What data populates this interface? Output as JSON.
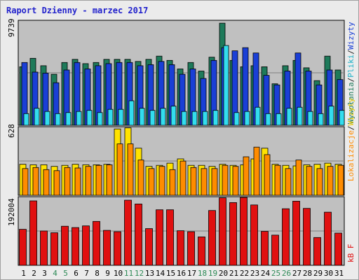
{
  "title": "Raport Dzienny -  marzec 2017",
  "colors": {
    "wywolania": "#1e7a5a",
    "wizyty": "#1a3fd6",
    "pliki": "#33ddee",
    "lokalizacje": "#ff8c00",
    "wizyty_yellow": "#ffe200",
    "kbf": "#e01010",
    "background": "#c0c0c0",
    "weekend_day": "#2e8b57"
  },
  "panels": {
    "top": {
      "max_label": "9739",
      "legend": [
        {
          "text": "Wywołania",
          "color": "#1e7a5a"
        },
        {
          "text": "/",
          "color": "#222222"
        },
        {
          "text": "Pliki",
          "color": "#1ab0c8"
        },
        {
          "text": "/",
          "color": "#222222"
        },
        {
          "text": "Wizyty",
          "color": "#1a3fd6"
        }
      ]
    },
    "middle": {
      "max_label": "628",
      "legend": [
        {
          "text": "Lokalizacje",
          "color": "#ff8c00"
        },
        {
          "text": "/",
          "color": "#222222"
        },
        {
          "text": "Wizyty",
          "color": "#e6c800"
        }
      ]
    },
    "bottom": {
      "max_label": "192004",
      "legend": [
        {
          "text": "kB F",
          "color": "#e01010"
        }
      ]
    }
  },
  "chart_data": {
    "type": "bar",
    "title": "Raport Dzienny -  marzec 2017",
    "categories": [
      "1",
      "2",
      "3",
      "4",
      "5",
      "6",
      "7",
      "8",
      "9",
      "10",
      "11",
      "12",
      "13",
      "14",
      "15",
      "16",
      "17",
      "18",
      "19",
      "20",
      "21",
      "22",
      "23",
      "24",
      "25",
      "26",
      "27",
      "28",
      "29",
      "30",
      "31"
    ],
    "weekend_days": [
      "4",
      "5",
      "11",
      "12",
      "18",
      "19",
      "25",
      "26"
    ],
    "panel_top": {
      "ymax": 9739,
      "series": [
        {
          "name": "Wywołania",
          "values": [
            5500,
            6300,
            5600,
            4800,
            5900,
            6200,
            5800,
            5900,
            6200,
            6200,
            6200,
            6000,
            6200,
            6500,
            6100,
            5300,
            5900,
            5100,
            6400,
            9600,
            6100,
            5500,
            5600,
            5500,
            3900,
            5600,
            6100,
            5400,
            4200,
            6500,
            5200
          ]
        },
        {
          "name": "Wizyty",
          "values": [
            5900,
            5000,
            4900,
            4000,
            5200,
            5900,
            5300,
            5600,
            5800,
            5900,
            5900,
            5600,
            5700,
            6000,
            5700,
            4800,
            5300,
            4400,
            6100,
            7300,
            7000,
            7300,
            6800,
            4700,
            3800,
            5100,
            6800,
            5100,
            3800,
            5200,
            4300
          ]
        },
        {
          "name": "Pliki",
          "values": [
            1100,
            1600,
            1300,
            1100,
            1200,
            1300,
            1400,
            1200,
            1500,
            1500,
            2300,
            1600,
            1400,
            1600,
            1800,
            1300,
            1300,
            1300,
            1400,
            7500,
            1200,
            1300,
            1700,
            1100,
            1100,
            1600,
            1700,
            1300,
            1100,
            1800,
            1400
          ]
        }
      ]
    },
    "panel_middle": {
      "ymax": 628,
      "series": [
        {
          "name": "Wizyty",
          "values": [
            290,
            285,
            285,
            270,
            280,
            290,
            285,
            285,
            290,
            620,
            630,
            440,
            270,
            280,
            300,
            340,
            280,
            280,
            270,
            290,
            280,
            285,
            340,
            440,
            290,
            280,
            275,
            285,
            290,
            300,
            290
          ]
        },
        {
          "name": "Lokalizacje",
          "values": [
            250,
            260,
            240,
            230,
            260,
            255,
            270,
            280,
            285,
            480,
            480,
            330,
            250,
            270,
            240,
            320,
            260,
            250,
            250,
            280,
            270,
            360,
            450,
            380,
            280,
            250,
            330,
            270,
            250,
            270,
            280
          ]
        }
      ]
    },
    "panel_bottom": {
      "ymax": 192004,
      "series": [
        {
          "name": "kB F",
          "values": [
            105000,
            188000,
            100000,
            95000,
            114000,
            110000,
            115000,
            128000,
            102000,
            98000,
            190000,
            179000,
            107000,
            162000,
            162000,
            101000,
            98000,
            83000,
            160000,
            197000,
            183000,
            198000,
            176000,
            99000,
            88000,
            165000,
            187000,
            166000,
            81000,
            155000,
            94000
          ]
        }
      ]
    }
  }
}
